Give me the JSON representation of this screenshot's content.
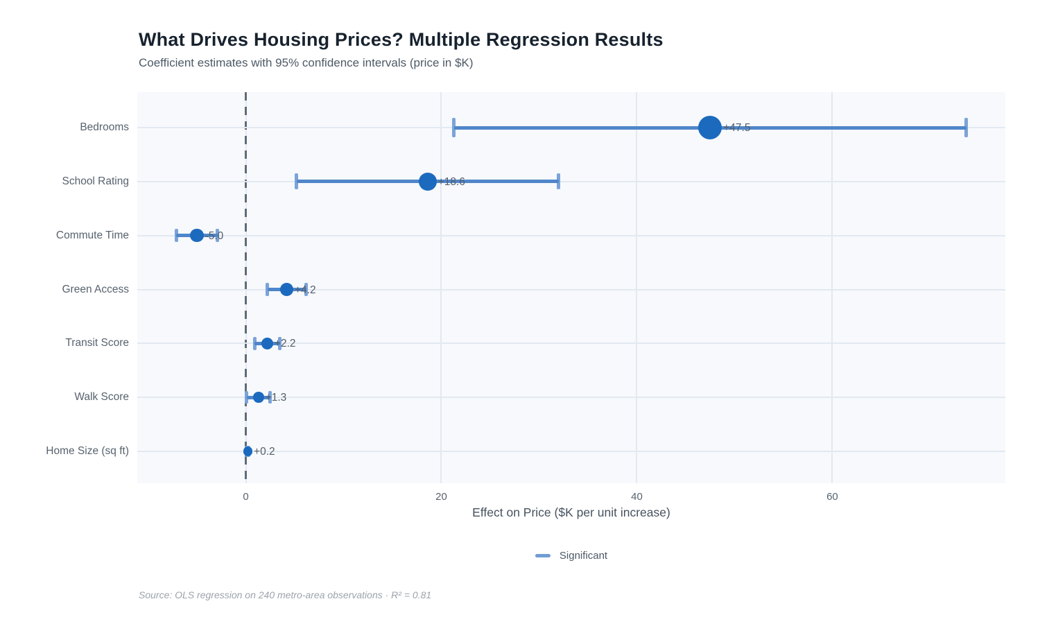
{
  "header": {
    "title": "What Drives Housing Prices? Multiple Regression Results",
    "subtitle": "Coefficient estimates with 95% confidence intervals (price in $K)"
  },
  "chart_data": {
    "type": "scatter",
    "variant": "coefficient-dot-whisker",
    "title": "What Drives Housing Prices? Multiple Regression Results",
    "subtitle": "Coefficient estimates with 95% confidence intervals (price in $K)",
    "categories": [
      "Bedrooms",
      "School Rating",
      "Commute Time",
      "Green Access",
      "Transit Score",
      "Walk Score",
      "Home Size (sq ft)"
    ],
    "estimates": [
      47.5,
      18.6,
      -5.0,
      4.2,
      2.2,
      1.3,
      0.2
    ],
    "ci_low": [
      21.3,
      5.2,
      -7.1,
      2.2,
      0.9,
      0.1,
      0.1
    ],
    "ci_high": [
      73.7,
      32.0,
      -2.9,
      6.2,
      3.5,
      2.5,
      0.3
    ],
    "point_labels": [
      "+47.5",
      "+18.6",
      "-5.0",
      "+4.2",
      "+2.2",
      "+1.3",
      "+0.2"
    ],
    "xlabel": "Effect on Price ($K per unit increase)",
    "ylabel": "",
    "xlim": [
      -11.1,
      77.7
    ],
    "xticks": [
      0,
      20,
      40,
      60
    ],
    "zero_reference_line": 0,
    "grid": true,
    "legend_position": "bottom",
    "legend": [
      {
        "label": "Significant",
        "color": "#6f9cd4"
      }
    ],
    "colors": {
      "dot": "#1c6abe",
      "error_bar": "#4f86c9",
      "error_cap": "#7ba3d8",
      "plot_background": "#f7f9fc",
      "gridline": "#e3e9f1",
      "zero_line": "#5f6b78"
    }
  },
  "footer": {
    "source": "Source: OLS regression on 240 metro-area observations · R² = 0.81"
  }
}
